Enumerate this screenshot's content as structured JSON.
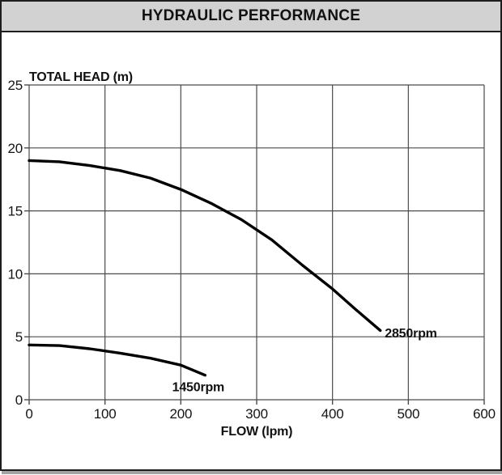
{
  "window": {
    "title": "HYDRAULIC PERFORMANCE"
  },
  "chart_data": {
    "type": "line",
    "title": "HYDRAULIC PERFORMANCE",
    "xlabel": "FLOW (lpm)",
    "ylabel": "TOTAL HEAD (m)",
    "xlim": [
      0,
      600
    ],
    "ylim": [
      0,
      25
    ],
    "x_ticks": [
      0,
      100,
      200,
      300,
      400,
      500,
      600
    ],
    "y_ticks": [
      0,
      5,
      10,
      15,
      20,
      25
    ],
    "grid": true,
    "legend_position": "inline-labels",
    "series": [
      {
        "name": "2850rpm",
        "x": [
          0,
          40,
          80,
          120,
          160,
          200,
          240,
          280,
          320,
          360,
          400,
          430,
          463
        ],
        "y": [
          19.0,
          18.9,
          18.6,
          18.2,
          17.6,
          16.7,
          15.6,
          14.3,
          12.7,
          10.7,
          8.8,
          7.2,
          5.5
        ],
        "label": {
          "text": "2850rpm",
          "x": 469,
          "y": 5.35,
          "anchor": "start"
        }
      },
      {
        "name": "1450rpm",
        "x": [
          0,
          40,
          80,
          120,
          160,
          200,
          232
        ],
        "y": [
          4.35,
          4.3,
          4.05,
          3.7,
          3.3,
          2.75,
          1.95
        ],
        "label": {
          "text": "1450rpm",
          "x": 223,
          "y": 1.05,
          "anchor": "middle"
        }
      }
    ],
    "colors": {
      "curve": "#000000",
      "grid": "#4b4b4b",
      "title_bar_bg": "#d2d2d2",
      "border": "#1d1d1d"
    }
  }
}
